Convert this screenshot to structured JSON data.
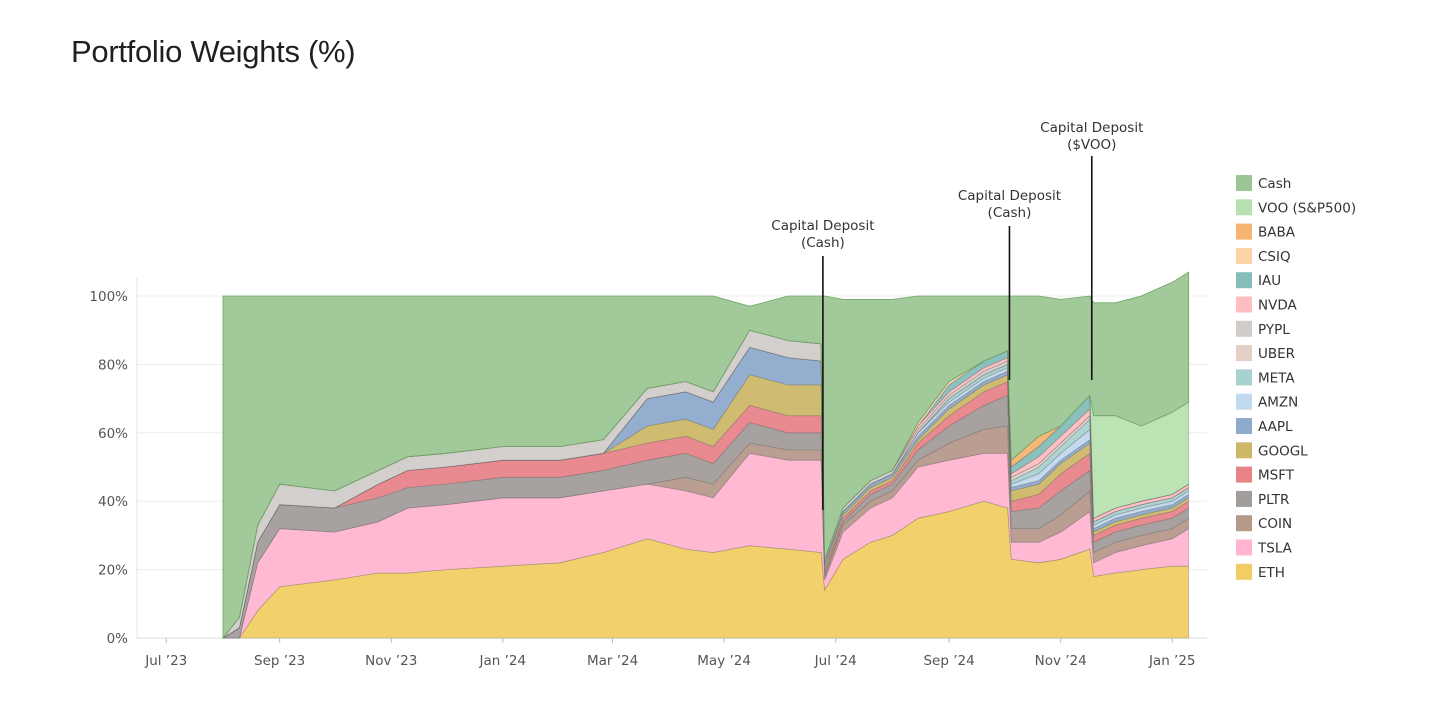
{
  "title": "Portfolio Weights (%)",
  "chart_data": {
    "type": "area",
    "stacked": true,
    "title": "Portfolio Weights (%)",
    "xlabel": "",
    "ylabel": "",
    "ylim": [
      0,
      100
    ],
    "xlim": [
      "2023-06-15",
      "2025-01-20"
    ],
    "grid": true,
    "legend_position": "right",
    "x_ticks": [
      {
        "date": "2023-07-01",
        "label": "Jul ’23"
      },
      {
        "date": "2023-09-01",
        "label": "Sep ’23"
      },
      {
        "date": "2023-11-01",
        "label": "Nov ’23"
      },
      {
        "date": "2024-01-01",
        "label": "Jan ’24"
      },
      {
        "date": "2024-03-01",
        "label": "Mar ’24"
      },
      {
        "date": "2024-05-01",
        "label": "May ’24"
      },
      {
        "date": "2024-07-01",
        "label": "Jul ’24"
      },
      {
        "date": "2024-09-01",
        "label": "Sep ’24"
      },
      {
        "date": "2024-11-01",
        "label": "Nov ’24"
      },
      {
        "date": "2025-01-01",
        "label": "Jan ’25"
      }
    ],
    "y_ticks": [
      {
        "value": 0,
        "label": "0%"
      },
      {
        "value": 20,
        "label": "20%"
      },
      {
        "value": 40,
        "label": "40%"
      },
      {
        "value": 60,
        "label": "60%"
      },
      {
        "value": 80,
        "label": "80%"
      },
      {
        "value": 100,
        "label": "100%"
      }
    ],
    "annotations": [
      {
        "date": "2024-06-24",
        "top_y": 112,
        "lines": [
          "Capital Deposit",
          "(Cash)"
        ]
      },
      {
        "date": "2024-10-04",
        "top_y": 128,
        "lines": [
          "Capital Deposit",
          "(Cash)"
        ]
      },
      {
        "date": "2024-11-18",
        "top_y": 142,
        "lines": [
          "Capital Deposit",
          "($VOO)"
        ]
      }
    ],
    "x": [
      "2023-08-01",
      "2023-08-10",
      "2023-08-20",
      "2023-09-01",
      "2023-10-01",
      "2023-10-25",
      "2023-11-10",
      "2023-12-01",
      "2024-01-01",
      "2024-02-01",
      "2024-02-25",
      "2024-03-20",
      "2024-04-10",
      "2024-04-25",
      "2024-05-15",
      "2024-06-05",
      "2024-06-23",
      "2024-06-25",
      "2024-07-05",
      "2024-07-20",
      "2024-08-01",
      "2024-08-15",
      "2024-09-01",
      "2024-09-20",
      "2024-10-03",
      "2024-10-05",
      "2024-10-20",
      "2024-11-01",
      "2024-11-17",
      "2024-11-19",
      "2024-12-01",
      "2024-12-15",
      "2025-01-01",
      "2025-01-10"
    ],
    "series": [
      {
        "name": "ETH",
        "color": "#F1CE63",
        "values": [
          0,
          0,
          8,
          15,
          17,
          19,
          19,
          20,
          21,
          22,
          25,
          29,
          26,
          25,
          27,
          26,
          25,
          14,
          23,
          28,
          30,
          35,
          37,
          40,
          38,
          23,
          22,
          23,
          26,
          18,
          19,
          20,
          21,
          21
        ]
      },
      {
        "name": "TSLA",
        "color": "#FFB5D1",
        "values": [
          0,
          0,
          14,
          17,
          14,
          15,
          19,
          19,
          20,
          19,
          18,
          16,
          17,
          16,
          27,
          26,
          27,
          3,
          8,
          10,
          11,
          15,
          15,
          14,
          16,
          5,
          6,
          8,
          11,
          4,
          6,
          7,
          8,
          11
        ]
      },
      {
        "name": "COIN",
        "color": "#B6998B",
        "values": [
          0,
          0,
          0,
          0,
          0,
          0,
          0,
          0,
          0,
          0,
          0,
          0,
          4,
          4,
          3,
          3,
          3,
          1,
          2,
          2,
          2,
          2,
          5,
          7,
          8,
          4,
          4,
          5,
          6,
          3,
          3,
          3,
          3,
          3
        ]
      },
      {
        "name": "PLTR",
        "color": "#A29D9A",
        "values": [
          0,
          3,
          6,
          7,
          7,
          7,
          6,
          6,
          6,
          6,
          6,
          7,
          7,
          6,
          6,
          5,
          5,
          1,
          1,
          2,
          2,
          3,
          5,
          7,
          9,
          5,
          6,
          7,
          6,
          3,
          3,
          3,
          3,
          3
        ]
      },
      {
        "name": "MSFT",
        "color": "#E8838A",
        "values": [
          0,
          0,
          0,
          0,
          0,
          4,
          5,
          5,
          5,
          5,
          5,
          5,
          5,
          5,
          5,
          5,
          5,
          1,
          1,
          1,
          1,
          2,
          3,
          4,
          4,
          3,
          4,
          5,
          5,
          2,
          2,
          2,
          2,
          2
        ]
      },
      {
        "name": "GOOGL",
        "color": "#CDB868",
        "values": [
          0,
          0,
          0,
          0,
          0,
          0,
          0,
          0,
          0,
          0,
          0,
          5,
          5,
          5,
          9,
          9,
          9,
          1,
          1,
          1,
          1,
          1,
          2,
          2,
          2,
          3,
          3,
          3,
          3,
          1,
          1,
          1,
          1,
          1
        ]
      },
      {
        "name": "AAPL",
        "color": "#8EAACC",
        "values": [
          0,
          0,
          0,
          0,
          0,
          0,
          0,
          0,
          0,
          0,
          0,
          8,
          8,
          8,
          8,
          8,
          7,
          1,
          1,
          1,
          1,
          1,
          1,
          1,
          1,
          1,
          1,
          1,
          1,
          1,
          1,
          1,
          1,
          1
        ]
      },
      {
        "name": "AMZN",
        "color": "#C1D9EE",
        "values": [
          0,
          0,
          0,
          0,
          0,
          0,
          0,
          0,
          0,
          0,
          0,
          0,
          0,
          0,
          0,
          0,
          0,
          0,
          0,
          0,
          0,
          1,
          1,
          1,
          1,
          1,
          2,
          2,
          3,
          1,
          1,
          1,
          1,
          1
        ]
      },
      {
        "name": "META",
        "color": "#A8D2D0",
        "values": [
          0,
          0,
          0,
          0,
          0,
          0,
          0,
          0,
          0,
          0,
          0,
          0,
          0,
          0,
          0,
          0,
          0,
          0,
          0,
          0,
          0,
          0,
          1,
          1,
          1,
          1,
          2,
          2,
          3,
          1,
          1,
          1,
          1,
          1
        ]
      },
      {
        "name": "UBER",
        "color": "#E4CFC6",
        "values": [
          0,
          0,
          0,
          0,
          0,
          0,
          0,
          0,
          0,
          0,
          0,
          0,
          0,
          0,
          0,
          0,
          0,
          0,
          0,
          0,
          0,
          0,
          0,
          0,
          0,
          1,
          1,
          1,
          1,
          0,
          0,
          0,
          0,
          0
        ]
      },
      {
        "name": "PYPL",
        "color": "#D1CCCA",
        "values": [
          0,
          3,
          5,
          6,
          5,
          4,
          4,
          4,
          4,
          4,
          4,
          3,
          3,
          3,
          5,
          5,
          5,
          1,
          1,
          1,
          1,
          1,
          1,
          1,
          1,
          0,
          0,
          0,
          0,
          0,
          0,
          0,
          0,
          0
        ]
      },
      {
        "name": "NVDA",
        "color": "#FFBDC0",
        "values": [
          0,
          0,
          0,
          0,
          0,
          0,
          0,
          0,
          0,
          0,
          0,
          0,
          0,
          0,
          0,
          0,
          0,
          0,
          0,
          0,
          0,
          1,
          1,
          1,
          1,
          1,
          2,
          2,
          2,
          1,
          1,
          1,
          1,
          1
        ]
      },
      {
        "name": "IAU",
        "color": "#85BEB8",
        "values": [
          0,
          0,
          0,
          0,
          0,
          0,
          0,
          0,
          0,
          0,
          0,
          0,
          0,
          0,
          0,
          0,
          0,
          0,
          0,
          0,
          0,
          0,
          2,
          2,
          2,
          2,
          3,
          3,
          4,
          0,
          0,
          0,
          0,
          0
        ]
      },
      {
        "name": "CSIQ",
        "color": "#FED3A8",
        "values": [
          0,
          0,
          0,
          0,
          0,
          0,
          0,
          0,
          0,
          0,
          0,
          0,
          0,
          0,
          0,
          0,
          0,
          0,
          0,
          0,
          0,
          1,
          1,
          0,
          0,
          0,
          0,
          0,
          0,
          0,
          0,
          0,
          0,
          0
        ]
      },
      {
        "name": "BABA",
        "color": "#F5B472",
        "values": [
          0,
          0,
          0,
          0,
          0,
          0,
          0,
          0,
          0,
          0,
          0,
          0,
          0,
          0,
          0,
          0,
          0,
          0,
          0,
          0,
          0,
          0,
          0,
          0,
          0,
          2,
          3,
          0,
          0,
          0,
          0,
          0,
          0,
          0
        ]
      },
      {
        "name": "VOO (S&P500)",
        "color": "#B7E2B0",
        "values": [
          0,
          0,
          0,
          0,
          0,
          0,
          0,
          0,
          0,
          0,
          0,
          0,
          0,
          0,
          0,
          0,
          0,
          0,
          0,
          0,
          0,
          0,
          0,
          0,
          0,
          0,
          0,
          0,
          0,
          30,
          27,
          22,
          24,
          24
        ]
      },
      {
        "name": "Cash",
        "color": "#9CC693",
        "values": [
          100,
          94,
          67,
          55,
          57,
          51,
          47,
          46,
          44,
          44,
          42,
          27,
          25,
          28,
          7,
          13,
          14,
          77,
          61,
          53,
          50,
          37,
          25,
          19,
          16,
          48,
          41,
          37,
          29,
          33,
          33,
          38,
          38,
          38
        ]
      }
    ],
    "legend_order": [
      "Cash",
      "VOO (S&P500)",
      "BABA",
      "CSIQ",
      "IAU",
      "NVDA",
      "PYPL",
      "UBER",
      "META",
      "AMZN",
      "AAPL",
      "GOOGL",
      "MSFT",
      "PLTR",
      "COIN",
      "TSLA",
      "ETH"
    ]
  }
}
